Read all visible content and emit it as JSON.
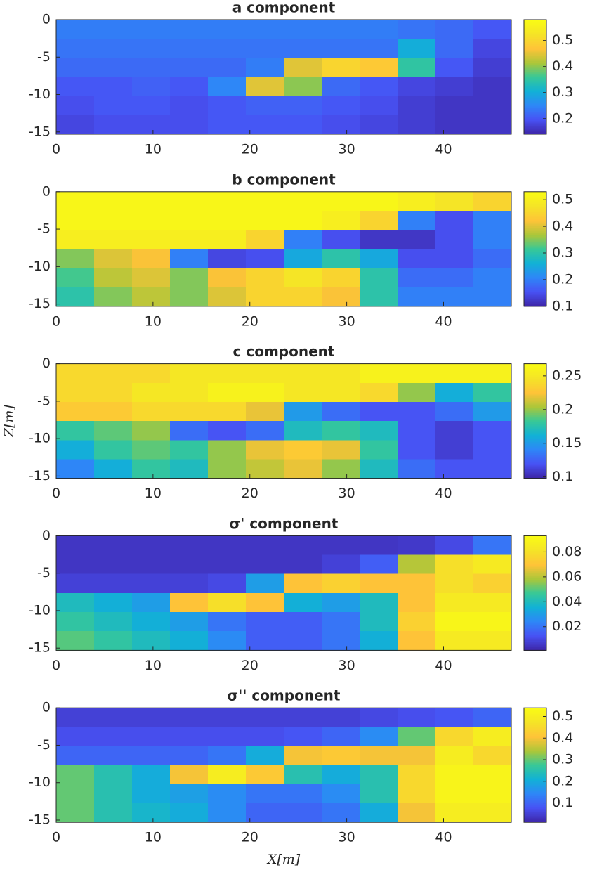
{
  "chart_data": [
    {
      "type": "heatmap",
      "title": "a component",
      "xlim": [
        0,
        47
      ],
      "xticks": [
        0,
        10,
        20,
        30,
        40
      ],
      "ylim": [
        -15.3,
        0
      ],
      "yticks": [
        0,
        -5,
        -10,
        -15
      ],
      "zlim": [
        0.14,
        0.58
      ],
      "zticks": [
        0.2,
        0.3,
        0.4,
        0.5
      ],
      "colormap": "parula",
      "z": [
        [
          0.24,
          0.24,
          0.24,
          0.24,
          0.24,
          0.24,
          0.24,
          0.24,
          0.24,
          0.23,
          0.22,
          0.2
        ],
        [
          0.23,
          0.23,
          0.23,
          0.23,
          0.23,
          0.23,
          0.23,
          0.23,
          0.23,
          0.3,
          0.22,
          0.18
        ],
        [
          0.22,
          0.22,
          0.22,
          0.22,
          0.22,
          0.24,
          0.45,
          0.5,
          0.48,
          0.35,
          0.2,
          0.17
        ],
        [
          0.2,
          0.2,
          0.21,
          0.2,
          0.25,
          0.45,
          0.4,
          0.22,
          0.2,
          0.18,
          0.17,
          0.16
        ],
        [
          0.19,
          0.2,
          0.2,
          0.19,
          0.2,
          0.21,
          0.21,
          0.2,
          0.19,
          0.17,
          0.16,
          0.16
        ],
        [
          0.18,
          0.19,
          0.19,
          0.19,
          0.2,
          0.2,
          0.2,
          0.19,
          0.18,
          0.17,
          0.16,
          0.16
        ]
      ]
    },
    {
      "type": "heatmap",
      "title": "b component",
      "xlim": [
        0,
        47
      ],
      "xticks": [
        0,
        10,
        20,
        30,
        40
      ],
      "ylim": [
        -15.3,
        0
      ],
      "yticks": [
        0,
        -5,
        -10,
        -15
      ],
      "zlim": [
        0.1,
        0.53
      ],
      "zticks": [
        0.1,
        0.2,
        0.3,
        0.4,
        0.5
      ],
      "colormap": "parula",
      "z": [
        [
          0.52,
          0.52,
          0.52,
          0.52,
          0.52,
          0.52,
          0.52,
          0.52,
          0.52,
          0.5,
          0.48,
          0.45
        ],
        [
          0.52,
          0.52,
          0.52,
          0.52,
          0.52,
          0.52,
          0.52,
          0.5,
          0.45,
          0.2,
          0.15,
          0.2
        ],
        [
          0.5,
          0.5,
          0.5,
          0.5,
          0.5,
          0.45,
          0.2,
          0.15,
          0.12,
          0.12,
          0.15,
          0.2
        ],
        [
          0.35,
          0.4,
          0.42,
          0.2,
          0.14,
          0.15,
          0.25,
          0.3,
          0.25,
          0.15,
          0.15,
          0.18
        ],
        [
          0.32,
          0.38,
          0.4,
          0.35,
          0.42,
          0.45,
          0.48,
          0.45,
          0.3,
          0.18,
          0.18,
          0.2
        ],
        [
          0.3,
          0.35,
          0.38,
          0.35,
          0.4,
          0.45,
          0.45,
          0.42,
          0.3,
          0.2,
          0.2,
          0.2
        ]
      ]
    },
    {
      "type": "heatmap",
      "title": "c component",
      "ylabel": "Z[m]",
      "xlim": [
        0,
        47
      ],
      "xticks": [
        0,
        10,
        20,
        30,
        40
      ],
      "ylim": [
        -15.3,
        0
      ],
      "yticks": [
        0,
        -5,
        -10,
        -15
      ],
      "zlim": [
        0.098,
        0.268
      ],
      "zticks": [
        0.1,
        0.15,
        0.2,
        0.25
      ],
      "colormap": "parula",
      "z": [
        [
          0.24,
          0.24,
          0.24,
          0.25,
          0.25,
          0.25,
          0.25,
          0.25,
          0.26,
          0.26,
          0.26,
          0.26
        ],
        [
          0.24,
          0.24,
          0.25,
          0.25,
          0.26,
          0.26,
          0.25,
          0.25,
          0.24,
          0.2,
          0.16,
          0.18
        ],
        [
          0.23,
          0.23,
          0.24,
          0.24,
          0.24,
          0.22,
          0.15,
          0.13,
          0.12,
          0.12,
          0.13,
          0.15
        ],
        [
          0.18,
          0.19,
          0.2,
          0.13,
          0.12,
          0.13,
          0.17,
          0.18,
          0.17,
          0.12,
          0.11,
          0.12
        ],
        [
          0.16,
          0.18,
          0.19,
          0.18,
          0.2,
          0.22,
          0.23,
          0.22,
          0.18,
          0.12,
          0.11,
          0.12
        ],
        [
          0.14,
          0.16,
          0.18,
          0.17,
          0.2,
          0.21,
          0.22,
          0.2,
          0.17,
          0.13,
          0.12,
          0.12
        ]
      ]
    },
    {
      "type": "heatmap",
      "title": "σ' component",
      "xlim": [
        0,
        47
      ],
      "xticks": [
        0,
        10,
        20,
        30,
        40
      ],
      "ylim": [
        -15.3,
        0
      ],
      "yticks": [
        0,
        -5,
        -10,
        -15
      ],
      "zlim": [
        0.001,
        0.093
      ],
      "zticks": [
        0.02,
        0.04,
        0.06,
        0.08
      ],
      "colormap": "parula",
      "z": [
        [
          0.005,
          0.005,
          0.005,
          0.005,
          0.005,
          0.005,
          0.005,
          0.005,
          0.005,
          0.006,
          0.01,
          0.02
        ],
        [
          0.005,
          0.005,
          0.005,
          0.005,
          0.005,
          0.005,
          0.005,
          0.008,
          0.015,
          0.06,
          0.08,
          0.085
        ],
        [
          0.008,
          0.008,
          0.008,
          0.008,
          0.01,
          0.03,
          0.07,
          0.075,
          0.07,
          0.07,
          0.08,
          0.075
        ],
        [
          0.04,
          0.035,
          0.03,
          0.07,
          0.08,
          0.07,
          0.035,
          0.03,
          0.04,
          0.07,
          0.085,
          0.085
        ],
        [
          0.045,
          0.04,
          0.035,
          0.03,
          0.02,
          0.015,
          0.015,
          0.02,
          0.04,
          0.075,
          0.09,
          0.09
        ],
        [
          0.05,
          0.045,
          0.04,
          0.035,
          0.025,
          0.015,
          0.015,
          0.02,
          0.035,
          0.07,
          0.085,
          0.085
        ]
      ]
    },
    {
      "type": "heatmap",
      "title": "σ'' component",
      "xlabel": "X[m]",
      "xlim": [
        0,
        47
      ],
      "xticks": [
        0,
        10,
        20,
        30,
        40
      ],
      "ylim": [
        -15.3,
        0
      ],
      "yticks": [
        0,
        -5,
        -10,
        -15
      ],
      "zlim": [
        0.01,
        0.54
      ],
      "zticks": [
        0.1,
        0.2,
        0.3,
        0.4,
        0.5
      ],
      "colormap": "parula",
      "z": [
        [
          0.05,
          0.05,
          0.05,
          0.05,
          0.05,
          0.05,
          0.05,
          0.05,
          0.06,
          0.07,
          0.08,
          0.1
        ],
        [
          0.07,
          0.07,
          0.07,
          0.07,
          0.07,
          0.07,
          0.08,
          0.1,
          0.15,
          0.3,
          0.45,
          0.5
        ],
        [
          0.1,
          0.1,
          0.1,
          0.1,
          0.12,
          0.2,
          0.4,
          0.42,
          0.4,
          0.4,
          0.5,
          0.45
        ],
        [
          0.3,
          0.25,
          0.2,
          0.4,
          0.5,
          0.42,
          0.25,
          0.2,
          0.25,
          0.45,
          0.52,
          0.52
        ],
        [
          0.3,
          0.25,
          0.2,
          0.18,
          0.15,
          0.12,
          0.12,
          0.15,
          0.25,
          0.45,
          0.52,
          0.52
        ],
        [
          0.3,
          0.25,
          0.22,
          0.2,
          0.15,
          0.1,
          0.1,
          0.12,
          0.2,
          0.4,
          0.5,
          0.5
        ]
      ]
    }
  ]
}
